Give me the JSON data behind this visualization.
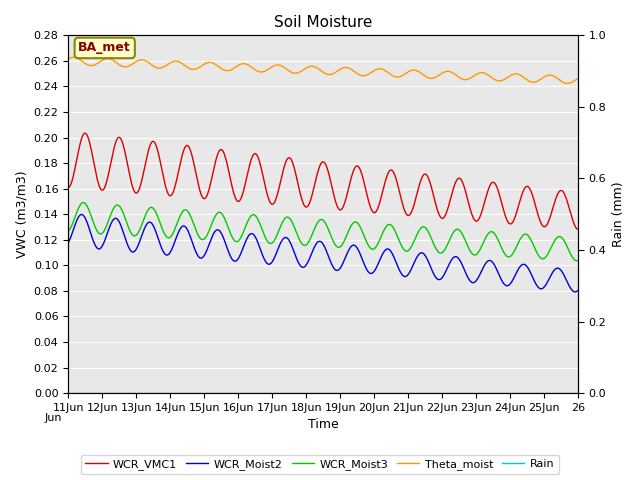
{
  "title": "Soil Moisture",
  "ylabel_left": "VWC (m3/m3)",
  "ylabel_right": "Rain (mm)",
  "xlabel": "Time",
  "ylim_left": [
    0.0,
    0.28
  ],
  "ylim_right": [
    0.0,
    1.0
  ],
  "x_ticks": [
    11,
    12,
    13,
    14,
    15,
    16,
    17,
    18,
    19,
    20,
    21,
    22,
    23,
    24,
    25,
    26
  ],
  "x_tick_labels": [
    "11Jun",
    "12Jun",
    "13Jun",
    "14Jun",
    "15Jun",
    "16Jun",
    "17Jun",
    "18Jun",
    "19Jun",
    "20Jun",
    "21Jun",
    "22Jun",
    "23Jun",
    "24Jun",
    "25Jun",
    "26"
  ],
  "annotation_text": "BA_met",
  "background_color": "#e8e8e8",
  "legend_entries": [
    "WCR_VMC1",
    "WCR_Moist2",
    "WCR_Moist3",
    "Theta_moist",
    "Rain"
  ],
  "line_colors": [
    "#dd0000",
    "#0000dd",
    "#00cc00",
    "#ff9900",
    "#00cccc"
  ],
  "title_fontsize": 11,
  "axis_label_fontsize": 9,
  "tick_fontsize": 8
}
